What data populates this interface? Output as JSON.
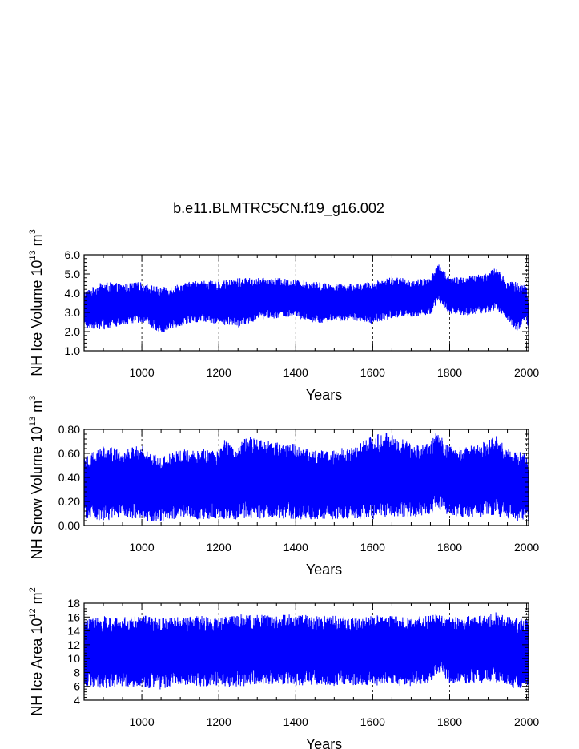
{
  "figure_title": "b.e11.BLMTRC5CN.f19_g16.002",
  "colors": {
    "series": "#0000ff",
    "axis": "#000000",
    "grid": "#000000"
  },
  "chart_data": [
    {
      "type": "line",
      "xlabel": "Years",
      "ylabel": {
        "base": "NH Ice Volume 10",
        "exp1": "13",
        "mid": " m",
        "exp2": "3"
      },
      "xlim": [
        850,
        2005
      ],
      "ylim": [
        1.0,
        6.0
      ],
      "xticks": [
        1000,
        1200,
        1400,
        1600,
        1800,
        2000
      ],
      "xtick_labels": [
        "1000",
        "1200",
        "1400",
        "1600",
        "1800",
        "2000"
      ],
      "yticks": [
        1.0,
        2.0,
        3.0,
        4.0,
        5.0,
        6.0
      ],
      "ytick_labels": [
        "1.0",
        "2.0",
        "3.0",
        "4.0",
        "5.0",
        "6.0"
      ],
      "grid": "vertical-dashed",
      "envelope": {
        "years": [
          850,
          900,
          950,
          1000,
          1050,
          1100,
          1150,
          1200,
          1250,
          1300,
          1350,
          1400,
          1450,
          1500,
          1550,
          1600,
          1650,
          1700,
          1750,
          1770,
          1800,
          1850,
          1900,
          1920,
          1950,
          1975,
          2000,
          2005
        ],
        "max": [
          4.1,
          4.6,
          4.5,
          4.6,
          4.3,
          4.5,
          4.7,
          4.6,
          4.8,
          4.8,
          4.8,
          4.7,
          4.6,
          4.5,
          4.5,
          4.6,
          4.9,
          4.7,
          4.8,
          5.6,
          4.8,
          4.9,
          5.1,
          5.4,
          4.6,
          4.6,
          4.4,
          3.2
        ],
        "min": [
          2.2,
          2.1,
          2.3,
          2.5,
          1.9,
          2.3,
          2.5,
          2.4,
          2.2,
          2.6,
          2.7,
          2.7,
          2.4,
          2.5,
          2.6,
          2.4,
          2.7,
          2.7,
          2.9,
          3.6,
          2.9,
          2.8,
          3.0,
          3.1,
          2.6,
          2.0,
          2.6,
          1.8
        ]
      }
    },
    {
      "type": "line",
      "xlabel": "Years",
      "ylabel": {
        "base": "NH Snow Volume 10",
        "exp1": "13",
        "mid": " m",
        "exp2": "3"
      },
      "xlim": [
        850,
        2005
      ],
      "ylim": [
        0.0,
        0.8
      ],
      "xticks": [
        1000,
        1200,
        1400,
        1600,
        1800,
        2000
      ],
      "xtick_labels": [
        "1000",
        "1200",
        "1400",
        "1600",
        "1800",
        "2000"
      ],
      "yticks": [
        0.0,
        0.2,
        0.4,
        0.6,
        0.8
      ],
      "ytick_labels": [
        "0.00",
        "0.20",
        "0.40",
        "0.60",
        "0.80"
      ],
      "grid": "vertical-dashed",
      "envelope": {
        "years": [
          850,
          900,
          950,
          1000,
          1050,
          1100,
          1150,
          1200,
          1215,
          1250,
          1265,
          1300,
          1350,
          1400,
          1450,
          1500,
          1550,
          1600,
          1650,
          1700,
          1750,
          1765,
          1800,
          1850,
          1900,
          1920,
          1950,
          1975,
          2000,
          2005
        ],
        "max": [
          0.58,
          0.67,
          0.63,
          0.67,
          0.57,
          0.63,
          0.65,
          0.62,
          0.72,
          0.64,
          0.75,
          0.72,
          0.7,
          0.68,
          0.63,
          0.64,
          0.65,
          0.76,
          0.78,
          0.68,
          0.69,
          0.79,
          0.66,
          0.66,
          0.72,
          0.75,
          0.64,
          0.62,
          0.6,
          0.45
        ],
        "min": [
          0.06,
          0.04,
          0.06,
          0.04,
          0.03,
          0.06,
          0.05,
          0.06,
          0.05,
          0.05,
          0.06,
          0.05,
          0.06,
          0.05,
          0.05,
          0.05,
          0.06,
          0.05,
          0.07,
          0.07,
          0.08,
          0.15,
          0.08,
          0.06,
          0.07,
          0.08,
          0.06,
          0.03,
          0.06,
          0.01
        ]
      }
    },
    {
      "type": "line",
      "xlabel": "Years",
      "ylabel": {
        "base": "NH Ice Area 10",
        "exp1": "12",
        "mid": " m",
        "exp2": "2"
      },
      "xlim": [
        850,
        2005
      ],
      "ylim": [
        4,
        18
      ],
      "xticks": [
        1000,
        1200,
        1400,
        1600,
        1800,
        2000
      ],
      "xtick_labels": [
        "1000",
        "1200",
        "1400",
        "1600",
        "1800",
        "2000"
      ],
      "yticks": [
        4,
        6,
        8,
        10,
        12,
        14,
        16,
        18
      ],
      "ytick_labels": [
        "4",
        "6",
        "8",
        "10",
        "12",
        "14",
        "16",
        "18"
      ],
      "grid": "vertical-dashed",
      "envelope": {
        "years": [
          850,
          900,
          950,
          1000,
          1050,
          1100,
          1150,
          1200,
          1250,
          1300,
          1350,
          1400,
          1450,
          1500,
          1550,
          1600,
          1650,
          1700,
          1750,
          1770,
          1800,
          1850,
          1900,
          1920,
          1950,
          1975,
          2000,
          2005
        ],
        "max": [
          15.8,
          16.2,
          16.0,
          16.3,
          15.9,
          16.0,
          16.2,
          16.0,
          16.4,
          16.3,
          16.3,
          16.4,
          16.2,
          16.2,
          16.0,
          16.2,
          16.4,
          16.0,
          16.2,
          16.5,
          16.0,
          16.2,
          16.4,
          16.7,
          16.2,
          16.0,
          15.8,
          15.2
        ],
        "min": [
          6.2,
          5.6,
          6.0,
          5.8,
          5.5,
          6.1,
          6.0,
          6.0,
          5.9,
          6.2,
          6.3,
          6.1,
          6.2,
          6.0,
          6.1,
          6.0,
          6.1,
          6.0,
          6.5,
          8.0,
          6.3,
          6.4,
          6.5,
          6.6,
          6.2,
          5.4,
          6.0,
          5.5
        ]
      }
    }
  ]
}
